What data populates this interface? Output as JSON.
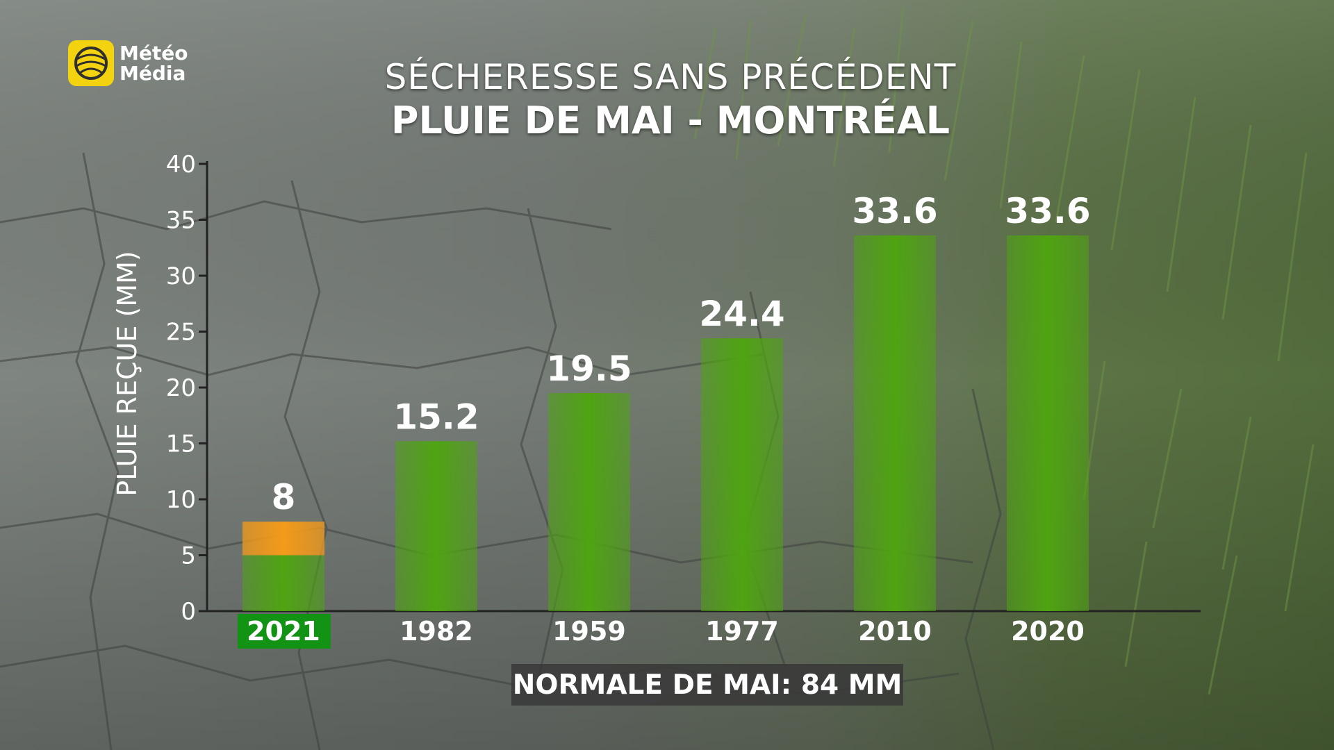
{
  "brand": {
    "name_line1": "Météo",
    "name_line2": "Média",
    "logo_color": "#f3d20f"
  },
  "title_line1": "SÉCHERESSE SANS PRÉCÉDENT",
  "title_line2": "PLUIE DE MAI - MONTRÉAL",
  "footnote": "NORMALE DE MAI: 84 MM",
  "colors": {
    "bar": "#4fa412",
    "bar_highlight": "#f39a1a",
    "highlight_label_bg": "#129313",
    "footnote_bg": "#3a3a3a"
  },
  "chart_data": {
    "type": "bar",
    "categories": [
      "2021",
      "1982",
      "1959",
      "1977",
      "2010",
      "2020"
    ],
    "values": [
      8,
      15.2,
      19.5,
      24.4,
      33.6,
      33.6
    ],
    "value_labels": [
      "8",
      "15.2",
      "19.5",
      "24.4",
      "33.6",
      "33.6"
    ],
    "highlight_category": "2021",
    "highlight_split_value": 5,
    "ylabel": "PLUIE REÇUE (MM)",
    "xlabel": "",
    "ylim": [
      0,
      40
    ],
    "yticks": [
      0,
      5,
      10,
      15,
      20,
      25,
      30,
      35,
      40
    ],
    "grid": false,
    "legend": "none"
  }
}
